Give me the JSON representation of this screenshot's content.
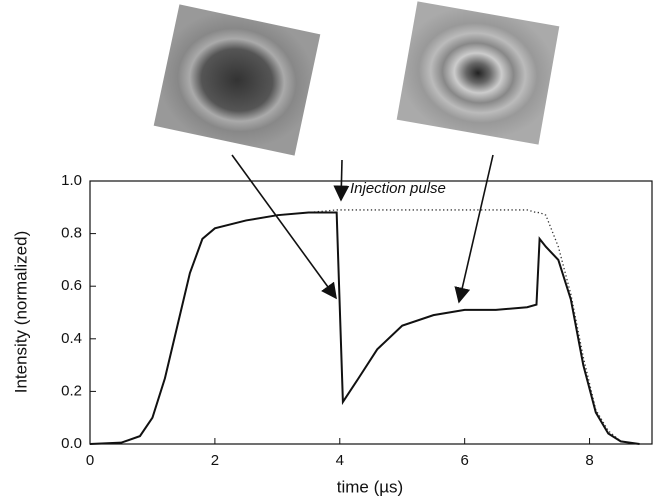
{
  "chart_data": {
    "type": "line",
    "annotation": "Injection pulse",
    "xlabel": "time (µs)",
    "ylabel": "Intensity (normalized)",
    "x": [
      0,
      0.5,
      0.8,
      1.0,
      1.2,
      1.4,
      1.6,
      1.8,
      2.0,
      2.5,
      3.0,
      3.5,
      3.95,
      4.05,
      4.3,
      4.6,
      5.0,
      5.5,
      6.0,
      6.5,
      7.0,
      7.15,
      7.2,
      7.3,
      7.5,
      7.7,
      7.9,
      8.1,
      8.3,
      8.5,
      8.8
    ],
    "series": [
      {
        "color": "#111111",
        "style": "solid",
        "values": [
          0,
          0.005,
          0.03,
          0.1,
          0.25,
          0.45,
          0.65,
          0.78,
          0.82,
          0.85,
          0.87,
          0.88,
          0.88,
          0.16,
          0.25,
          0.36,
          0.45,
          0.49,
          0.51,
          0.51,
          0.52,
          0.53,
          0.78,
          0.75,
          0.7,
          0.55,
          0.3,
          0.12,
          0.04,
          0.01,
          0
        ]
      },
      {
        "color": "#333333",
        "style": "dotted",
        "values": [
          0,
          0.005,
          0.03,
          0.1,
          0.25,
          0.45,
          0.65,
          0.78,
          0.82,
          0.85,
          0.87,
          0.88,
          0.89,
          0.89,
          0.89,
          0.89,
          0.89,
          0.89,
          0.89,
          0.89,
          0.89,
          0.88,
          0.88,
          0.87,
          0.75,
          0.57,
          0.33,
          0.13,
          0.05,
          0.01,
          0
        ]
      }
    ],
    "xlim": [
      0,
      9
    ],
    "xticks": [
      0,
      2,
      4,
      6,
      8
    ],
    "ylim": [
      0,
      1.0
    ],
    "yticks": [
      {
        "value": 0,
        "label": "0.0"
      },
      0.2,
      0.4,
      0.6,
      0.8,
      {
        "value": 1.0,
        "label": "1.0"
      }
    ]
  }
}
